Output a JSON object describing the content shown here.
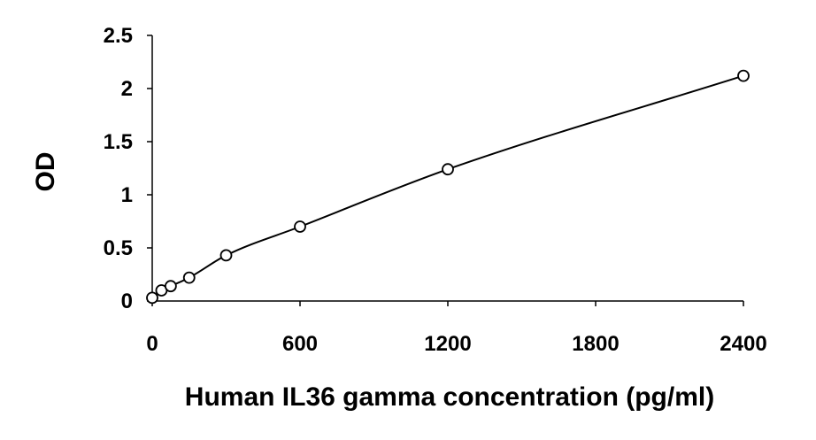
{
  "chart_data": {
    "type": "scatter",
    "title": "",
    "xlabel": "Human IL36 gamma concentration (pg/ml)",
    "ylabel": "OD",
    "xlim": [
      0,
      2400
    ],
    "ylim": [
      0,
      2.5
    ],
    "xticks": [
      0,
      600,
      1200,
      1800,
      2400
    ],
    "yticks": [
      0,
      0.5,
      1,
      1.5,
      2,
      2.5
    ],
    "xtick_labels": [
      "0",
      "600",
      "1200",
      "1800",
      "2400"
    ],
    "ytick_labels": [
      "0",
      "0.5",
      "1",
      "1.5",
      "2",
      "2.5"
    ],
    "grid": false,
    "legend": "none",
    "marker": "open-circle",
    "fit_line": "smooth curve",
    "colors": {
      "line": "#000000",
      "marker_stroke": "#000000",
      "marker_fill": "#ffffff"
    },
    "series": [
      {
        "x": [
          0,
          37.5,
          75,
          150,
          300,
          600,
          1200,
          2400
        ],
        "y": [
          0.03,
          0.1,
          0.14,
          0.22,
          0.43,
          0.7,
          1.24,
          2.12
        ]
      }
    ]
  }
}
